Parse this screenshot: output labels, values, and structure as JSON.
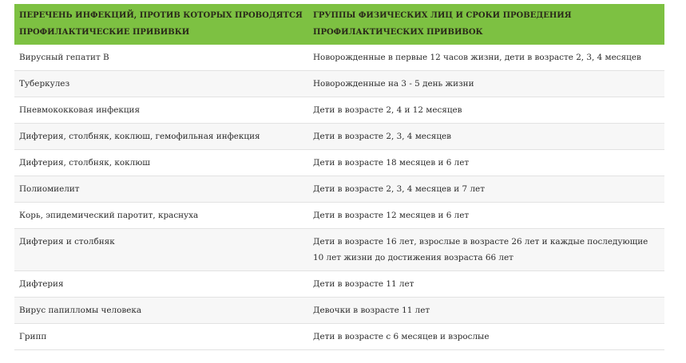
{
  "table": {
    "headers": [
      "ПЕРЕЧЕНЬ ИНФЕКЦИЙ, ПРОТИВ КОТОРЫХ ПРОВОДЯТСЯ ПРОФИЛАКТИЧЕСКИЕ ПРИВИВКИ",
      "ГРУППЫ ФИЗИЧЕСКИХ ЛИЦ И СРОКИ ПРОВЕДЕНИЯ ПРОФИЛАКТИЧЕСКИХ ПРИВИВОК"
    ],
    "header_color": "#7dc142",
    "rows": [
      [
        "Вирусный гепатит В",
        "Новорожденные в первые 12 часов жизни, дети в возрасте 2, 3, 4 месяцев"
      ],
      [
        "Туберкулез",
        "Новорожденные на 3 - 5 день жизни"
      ],
      [
        "Пневмококковая инфекция",
        "Дети в возрасте 2, 4 и 12 месяцев"
      ],
      [
        "Дифтерия, столбняк, коклюш, гемофильная инфекция",
        "Дети в возрасте 2, 3, 4 месяцев"
      ],
      [
        "Дифтерия, столбняк, коклюш",
        "Дети в возрасте 18 месяцев и 6 лет"
      ],
      [
        "Полиомиелит",
        "Дети в возрасте 2, 3, 4 месяцев и 7 лет"
      ],
      [
        "Корь, эпидемический паротит, краснуха",
        "Дети в возрасте 12 месяцев и 6 лет"
      ],
      [
        "Дифтерия и столбняк",
        "Дети в возрасте 16 лет, взрослые в возрасте 26 лет и каждые последующие 10 лет жизни до достижения возраста 66 лет"
      ],
      [
        "Дифтерия",
        "Дети в возрасте 11 лет"
      ],
      [
        "Вирус папилломы человека",
        "Девочки в возрасте 11 лет"
      ],
      [
        "Грипп",
        "Дети в возрасте с 6 месяцев и взрослые"
      ]
    ]
  }
}
